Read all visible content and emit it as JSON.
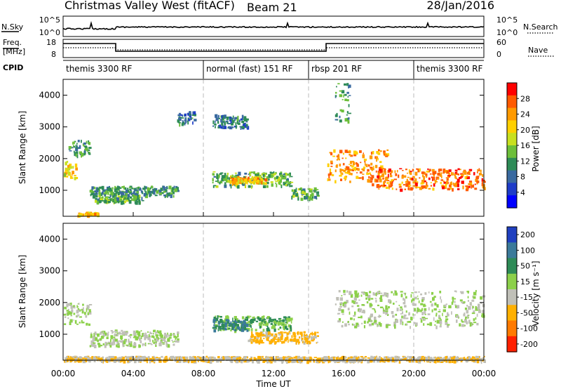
{
  "header": {
    "title": "Christmas Valley West (fitACF)",
    "beam": "Beam 21",
    "date": "28/Jan/2016"
  },
  "top_panels": {
    "nsky_label": "N.Sky",
    "nsky_ticks": [
      "10^5",
      "10^0"
    ],
    "nsearch_label": "N.Search",
    "nsearch_ticks": [
      "10^5",
      "10^0"
    ],
    "freq_label": "Freq.",
    "freq_unit": "[MHz]",
    "freq_ticks": [
      "18",
      "8"
    ],
    "nave_label": "Nave",
    "nave_ticks": [
      "60",
      "0"
    ],
    "cpid_label": "CPID",
    "cpid_segments": [
      {
        "label": "themis 3300 RF",
        "start_h": 0,
        "end_h": 8
      },
      {
        "label": "normal (fast) 151 RF",
        "start_h": 8,
        "end_h": 14
      },
      {
        "label": "rbsp 201 RF",
        "start_h": 14,
        "end_h": 20
      },
      {
        "label": "themis 3300 RF",
        "start_h": 20,
        "end_h": 24
      }
    ]
  },
  "chart_data": [
    {
      "type": "heatmap",
      "panel": "power",
      "ylabel": "Slant Range [km]",
      "ylim": [
        180,
        4500
      ],
      "y_ticks": [
        "4000",
        "3000",
        "2000",
        "1000"
      ],
      "colorbar_label": "Power [dB]",
      "colorbar_ticks": [
        "28",
        "24",
        "20",
        "16",
        "12",
        "8",
        "4"
      ],
      "colorbar_colors": [
        "#ff0000",
        "#ff5a00",
        "#ff9a00",
        "#ffd000",
        "#c8e020",
        "#6dbf3a",
        "#2e8b57",
        "#3a6aa0",
        "#1e3cc8",
        "#0000ff"
      ],
      "blobs": [
        {
          "h0": 0.0,
          "h1": 0.7,
          "r0": 1400,
          "r1": 1950,
          "level": 20
        },
        {
          "h0": 0.3,
          "h1": 1.5,
          "r0": 2100,
          "r1": 2600,
          "level": 12
        },
        {
          "h0": 1.5,
          "h1": 6.5,
          "r0": 850,
          "r1": 1150,
          "level": 12
        },
        {
          "h0": 1.8,
          "h1": 4.5,
          "r0": 650,
          "r1": 850,
          "level": 14
        },
        {
          "h0": 0.8,
          "h1": 2.0,
          "r0": 230,
          "r1": 330,
          "level": 22
        },
        {
          "h0": 8.5,
          "h1": 13.0,
          "r0": 1150,
          "r1": 1600,
          "level": 14
        },
        {
          "h0": 9.5,
          "h1": 11.5,
          "r0": 1250,
          "r1": 1450,
          "level": 22
        },
        {
          "h0": 13.0,
          "h1": 14.5,
          "r0": 750,
          "r1": 1100,
          "level": 14
        },
        {
          "h0": 15.0,
          "h1": 18.5,
          "r0": 1300,
          "r1": 2300,
          "level": 24
        },
        {
          "h0": 17.5,
          "h1": 24.0,
          "r0": 1050,
          "r1": 1700,
          "level": 26
        },
        {
          "h0": 15.5,
          "h1": 16.3,
          "r0": 3200,
          "r1": 4400,
          "level": 12
        },
        {
          "h0": 6.5,
          "h1": 7.5,
          "r0": 3100,
          "r1": 3500,
          "level": 10
        },
        {
          "h0": 8.5,
          "h1": 10.5,
          "r0": 3000,
          "r1": 3400,
          "level": 10
        }
      ]
    },
    {
      "type": "heatmap",
      "panel": "velocity",
      "ylabel": "Slant Range [km]",
      "ylim": [
        180,
        4500
      ],
      "y_ticks": [
        "4000",
        "3000",
        "2000",
        "1000"
      ],
      "colorbar_label": "Velocity [m s⁻¹]",
      "colorbar_ticks": [
        "200",
        "100",
        "50",
        "15",
        "-15",
        "-50",
        "-100",
        "-200"
      ],
      "colorbar_colors": [
        "#2040c0",
        "#3b7a9a",
        "#2e8b57",
        "#8cd04a",
        "#c0c0b8",
        "#ffb000",
        "#ff7a00",
        "#ff2000"
      ],
      "blobs": [
        {
          "h0": 0.0,
          "h1": 1.5,
          "r0": 1300,
          "r1": 2000,
          "level": 0
        },
        {
          "h0": 1.5,
          "h1": 6.5,
          "r0": 650,
          "r1": 1150,
          "level": 0
        },
        {
          "h0": 8.5,
          "h1": 13.0,
          "r0": 1150,
          "r1": 1600,
          "level": 30
        },
        {
          "h0": 8.5,
          "h1": 10.5,
          "r0": 1150,
          "r1": 1500,
          "level": 80
        },
        {
          "h0": 10.5,
          "h1": 14.5,
          "r0": 750,
          "r1": 1100,
          "level": -40
        },
        {
          "h0": 15.5,
          "h1": 24.0,
          "r0": 1250,
          "r1": 2400,
          "level": 0
        },
        {
          "h0": 0.0,
          "h1": 24.0,
          "r0": 180,
          "r1": 320,
          "level": -30
        }
      ]
    }
  ],
  "xaxis": {
    "label": "Time UT",
    "ticks": [
      "00:00",
      "04:00",
      "08:00",
      "12:00",
      "16:00",
      "20:00",
      "00:00"
    ]
  }
}
